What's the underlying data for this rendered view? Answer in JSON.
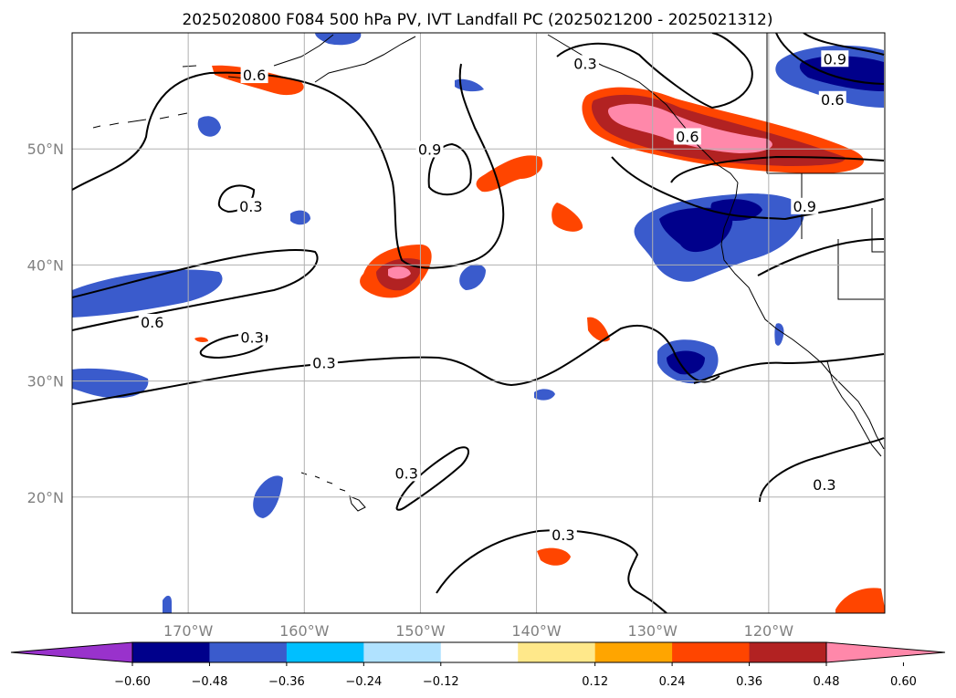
{
  "title": "2025020800 F084 500 hPa PV, IVT Landfall PC (2025021200 - 2025021312)",
  "map": {
    "lon_range": [
      -180,
      -110
    ],
    "lat_range": [
      10,
      60
    ],
    "lon_ticks": [
      {
        "value": -170,
        "label": "170°W"
      },
      {
        "value": -160,
        "label": "160°W"
      },
      {
        "value": -150,
        "label": "150°W"
      },
      {
        "value": -140,
        "label": "140°W"
      },
      {
        "value": -130,
        "label": "130°W"
      },
      {
        "value": -120,
        "label": "120°W"
      }
    ],
    "lat_ticks": [
      {
        "value": 20,
        "label": "20°N"
      },
      {
        "value": 30,
        "label": "30°N"
      },
      {
        "value": 40,
        "label": "40°N"
      },
      {
        "value": 50,
        "label": "50°N"
      }
    ],
    "gridlines": true
  },
  "contour_labels": [
    {
      "text": "0.6",
      "lon": -164.3,
      "lat": 56.3
    },
    {
      "text": "0.9",
      "lon": -149.2,
      "lat": 49.9
    },
    {
      "text": "0.3",
      "lon": -164.6,
      "lat": 45.0
    },
    {
      "text": "0.6",
      "lon": -173.1,
      "lat": 35.0
    },
    {
      "text": "0.3",
      "lon": -164.5,
      "lat": 33.7
    },
    {
      "text": "0.3",
      "lon": -158.3,
      "lat": 31.5
    },
    {
      "text": "0.3",
      "lon": -151.2,
      "lat": 22.0
    },
    {
      "text": "0.3",
      "lon": -137.7,
      "lat": 16.7
    },
    {
      "text": "0.3",
      "lon": -115.2,
      "lat": 21.0
    },
    {
      "text": "0.9",
      "lon": -116.9,
      "lat": 45.0
    },
    {
      "text": "0.9",
      "lon": -114.3,
      "lat": 57.7
    },
    {
      "text": "0.6",
      "lon": -114.5,
      "lat": 54.2
    },
    {
      "text": "0.6",
      "lon": -127.0,
      "lat": 51.0
    },
    {
      "text": "0.3",
      "lon": -135.8,
      "lat": 57.3
    }
  ],
  "colorbar": {
    "ticks": [
      "−0.60",
      "−0.48",
      "−0.36",
      "−0.24",
      "−0.12",
      "0.12",
      "0.24",
      "0.36",
      "0.48",
      "0.60"
    ],
    "colors": [
      "#9932cc",
      "#00008b",
      "#3a5bcc",
      "#00bfff",
      "#b0e2ff",
      "#ffffff",
      "#ffe88a",
      "#ffa500",
      "#ff4500",
      "#b22222",
      "#ff88aa"
    ]
  },
  "colors": {
    "grid": "#b0b0b0",
    "coast": "#000000"
  }
}
